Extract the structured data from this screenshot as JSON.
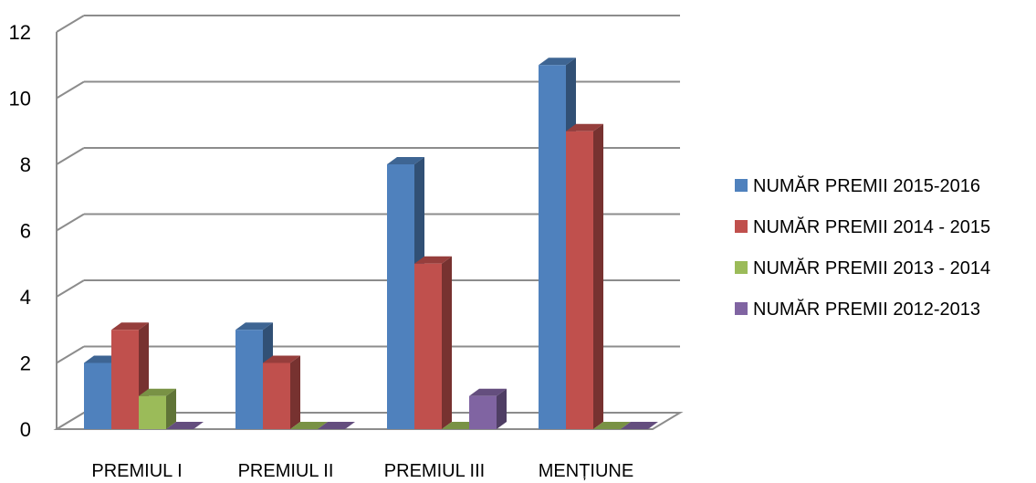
{
  "chart_data": {
    "type": "bar",
    "categories": [
      "PREMIUL I",
      "PREMIUL II",
      "PREMIUL III",
      "MENȚIUNE"
    ],
    "series": [
      {
        "name": "NUMĂR PREMII 2015-2016",
        "values": [
          2,
          3,
          8,
          11
        ],
        "color": "#4F81BD"
      },
      {
        "name": "NUMĂR PREMII 2014 - 2015",
        "values": [
          3,
          2,
          5,
          9
        ],
        "color": "#C0504D"
      },
      {
        "name": "NUMĂR PREMII 2013 - 2014",
        "values": [
          1,
          0,
          0,
          0
        ],
        "color": "#9BBB59"
      },
      {
        "name": "NUMĂR PREMII 2012-2013",
        "values": [
          0,
          0,
          1,
          0
        ],
        "color": "#8064A2"
      }
    ],
    "yticks": [
      "0",
      "2",
      "4",
      "6",
      "8",
      "10",
      "12"
    ],
    "ylim": [
      0,
      12
    ],
    "grid": true,
    "legend_position": "right",
    "style": "3d-clustered-column"
  }
}
